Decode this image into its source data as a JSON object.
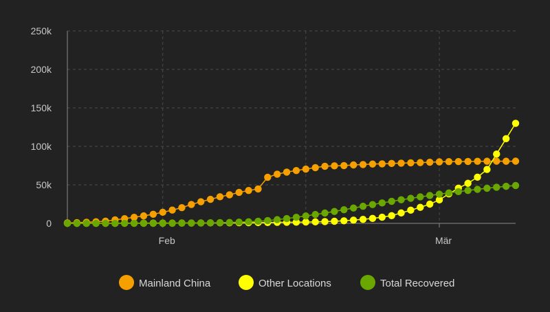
{
  "chart_data": {
    "type": "line",
    "x_axis": {
      "type": "date",
      "range": [
        "2020-01-22",
        "2020-03-09"
      ],
      "ticks": [
        {
          "date": "2020-02-01",
          "label": "Feb"
        },
        {
          "date": "2020-03-01",
          "label": "Mär"
        }
      ],
      "extra_gridlines": [
        "2020-01-20",
        "2020-02-16"
      ]
    },
    "y_axis": {
      "ylim": [
        0,
        250000
      ],
      "ticks": [
        {
          "value": 0,
          "label": "0"
        },
        {
          "value": 50000,
          "label": "50k"
        },
        {
          "value": 100000,
          "label": "100k"
        },
        {
          "value": 150000,
          "label": "150k"
        },
        {
          "value": 200000,
          "label": "200k"
        },
        {
          "value": 250000,
          "label": "250k"
        }
      ]
    },
    "grid": true,
    "legend_position": "bottom",
    "x": [
      "2020-01-22",
      "2020-01-23",
      "2020-01-24",
      "2020-01-25",
      "2020-01-26",
      "2020-01-27",
      "2020-01-28",
      "2020-01-29",
      "2020-01-30",
      "2020-01-31",
      "2020-02-01",
      "2020-02-02",
      "2020-02-03",
      "2020-02-04",
      "2020-02-05",
      "2020-02-06",
      "2020-02-07",
      "2020-02-08",
      "2020-02-09",
      "2020-02-10",
      "2020-02-11",
      "2020-02-12",
      "2020-02-13",
      "2020-02-14",
      "2020-02-15",
      "2020-02-16",
      "2020-02-17",
      "2020-02-18",
      "2020-02-19",
      "2020-02-20",
      "2020-02-21",
      "2020-02-22",
      "2020-02-23",
      "2020-02-24",
      "2020-02-25",
      "2020-02-26",
      "2020-02-27",
      "2020-02-28",
      "2020-02-29",
      "2020-03-01",
      "2020-03-02",
      "2020-03-03",
      "2020-03-04",
      "2020-03-05",
      "2020-03-06",
      "2020-03-07",
      "2020-03-08",
      "2020-03-09"
    ],
    "series": [
      {
        "name": "Mainland China",
        "color": "#f5a000",
        "values": [
          600,
          900,
          1400,
          2100,
          2800,
          4500,
          6100,
          7900,
          9700,
          11800,
          14400,
          17200,
          20400,
          24500,
          28100,
          31200,
          34500,
          37100,
          40200,
          42700,
          44700,
          59900,
          63900,
          66600,
          68600,
          70500,
          72400,
          74200,
          74700,
          75100,
          75900,
          76400,
          77000,
          77300,
          77800,
          78200,
          78600,
          78900,
          79400,
          79900,
          80200,
          80300,
          80400,
          80600,
          80700,
          80800,
          80700,
          80800
        ]
      },
      {
        "name": "Other Locations",
        "color": "#ffff00",
        "values": [
          0,
          0,
          100,
          100,
          100,
          100,
          200,
          200,
          200,
          300,
          300,
          300,
          400,
          400,
          500,
          600,
          700,
          700,
          800,
          900,
          1000,
          1100,
          1300,
          1400,
          1500,
          1700,
          1900,
          2300,
          2700,
          3300,
          4200,
          5200,
          6400,
          8000,
          10000,
          13500,
          17100,
          20800,
          25000,
          30500,
          38300,
          45700,
          52000,
          60000,
          70000,
          90000,
          110000,
          130000
        ]
      },
      {
        "name": "Total Recovered",
        "color": "#6aa700",
        "values": [
          0,
          0,
          0,
          0,
          0,
          0,
          0,
          0,
          0,
          0,
          0,
          100,
          200,
          300,
          500,
          700,
          900,
          1200,
          1600,
          2100,
          2700,
          3600,
          4800,
          6200,
          7900,
          9600,
          11500,
          13400,
          15500,
          17700,
          19900,
          22200,
          24400,
          26500,
          28600,
          30600,
          32500,
          34400,
          36200,
          37900,
          39600,
          41200,
          42700,
          44200,
          45600,
          46900,
          48100,
          49200
        ]
      }
    ]
  }
}
